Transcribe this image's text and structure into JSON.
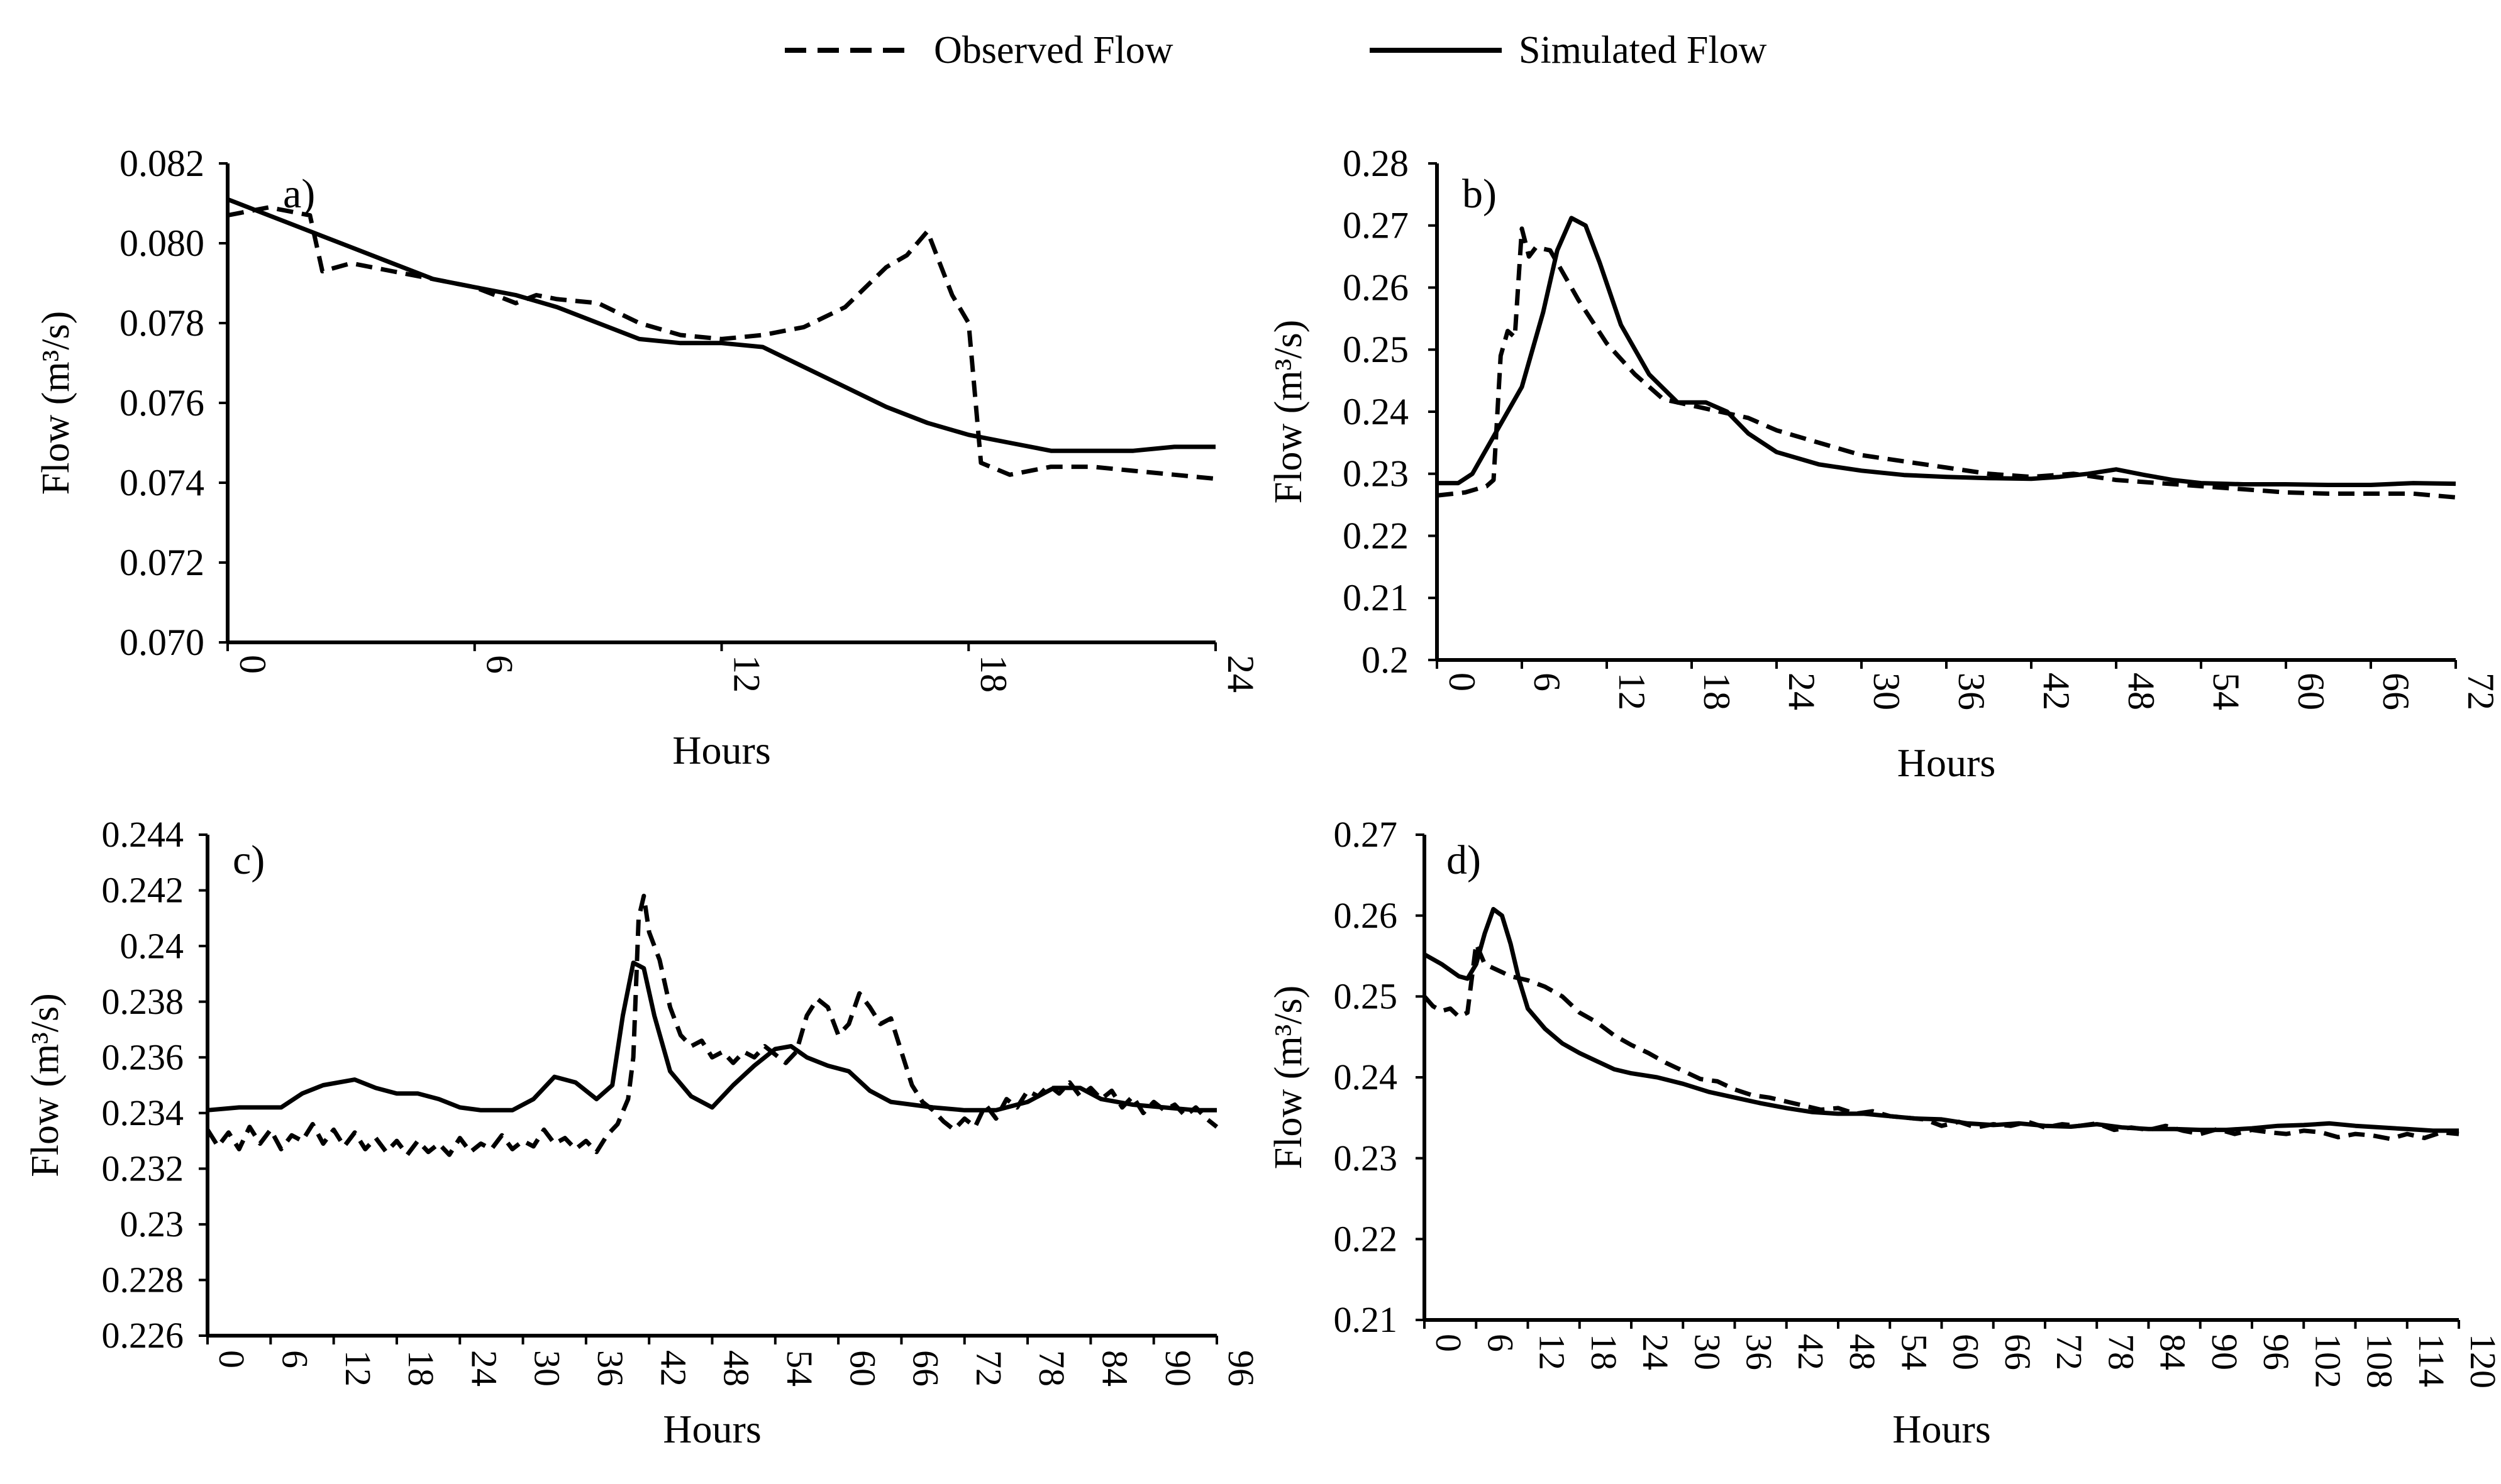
{
  "legend": {
    "observed_label": "Observed Flow",
    "simulated_label": "Simulated Flow"
  },
  "colors": {
    "line": "#000000",
    "background": "#ffffff"
  },
  "chart_data": [
    {
      "id": "a",
      "type": "line",
      "panel_label": "a)",
      "xlabel": "Hours",
      "ylabel": "Flow (m³/s)",
      "xlim": [
        0,
        24
      ],
      "ylim": [
        0.07,
        0.082
      ],
      "xticks": [
        0,
        6,
        12,
        18,
        24
      ],
      "yticks": [
        0.07,
        0.072,
        0.074,
        0.076,
        0.078,
        0.08,
        0.082
      ],
      "ytick_decimals": 3,
      "series": [
        {
          "name": "Observed Flow",
          "style": "dashed",
          "x": [
            0,
            0.5,
            1,
            1.5,
            2,
            2.3,
            3,
            4,
            5,
            6,
            7,
            7.5,
            8,
            9,
            10,
            11,
            12,
            13,
            14,
            15,
            16,
            16.5,
            17,
            17.3,
            17.6,
            18,
            18.3,
            19,
            20,
            21,
            22,
            23,
            24
          ],
          "values": [
            0.0807,
            0.0808,
            0.0809,
            0.0808,
            0.0807,
            0.0793,
            0.0795,
            0.0793,
            0.0791,
            0.0789,
            0.0785,
            0.0787,
            0.0786,
            0.0785,
            0.078,
            0.0777,
            0.0776,
            0.0777,
            0.0779,
            0.0784,
            0.0794,
            0.0797,
            0.0803,
            0.0795,
            0.0787,
            0.078,
            0.0745,
            0.0742,
            0.0744,
            0.0744,
            0.0743,
            0.0742,
            0.0741
          ]
        },
        {
          "name": "Simulated Flow",
          "style": "solid",
          "x": [
            0,
            1,
            2,
            3,
            4,
            5,
            6,
            7,
            8,
            9,
            10,
            11,
            12,
            13,
            14,
            15,
            16,
            17,
            18,
            19,
            20,
            21,
            22,
            23,
            24
          ],
          "values": [
            0.0811,
            0.0807,
            0.0803,
            0.0799,
            0.0795,
            0.0791,
            0.0789,
            0.0787,
            0.0784,
            0.078,
            0.0776,
            0.0775,
            0.0775,
            0.0774,
            0.0769,
            0.0764,
            0.0759,
            0.0755,
            0.0752,
            0.075,
            0.0748,
            0.0748,
            0.0748,
            0.0749,
            0.0749
          ]
        }
      ]
    },
    {
      "id": "b",
      "type": "line",
      "panel_label": "b)",
      "xlabel": "Hours",
      "ylabel": "Flow (m³/s)",
      "xlim": [
        0,
        72
      ],
      "ylim": [
        0.2,
        0.28
      ],
      "xticks": [
        0,
        6,
        12,
        18,
        24,
        30,
        36,
        42,
        48,
        54,
        60,
        66,
        72
      ],
      "yticks": [
        0.2,
        0.21,
        0.22,
        0.23,
        0.24,
        0.25,
        0.26,
        0.27,
        0.28
      ],
      "ytick_labels": [
        "0.2",
        "0.21",
        "0.22",
        "0.23",
        "0.24",
        "0.25",
        "0.26",
        "0.27",
        "0.28"
      ],
      "series": [
        {
          "name": "Observed Flow",
          "style": "dashed",
          "x": [
            0,
            2,
            3.5,
            4,
            4.5,
            5,
            5.5,
            6,
            6.5,
            7,
            8,
            9,
            10,
            12,
            14,
            16,
            18,
            20,
            22,
            24,
            27,
            30,
            33,
            36,
            39,
            42,
            45,
            48,
            51,
            54,
            57,
            60,
            63,
            66,
            69,
            72
          ],
          "values": [
            0.2265,
            0.227,
            0.228,
            0.229,
            0.249,
            0.253,
            0.252,
            0.2695,
            0.265,
            0.2665,
            0.266,
            0.262,
            0.258,
            0.251,
            0.246,
            0.242,
            0.241,
            0.24,
            0.239,
            0.237,
            0.235,
            0.233,
            0.232,
            0.231,
            0.23,
            0.2295,
            0.23,
            0.229,
            0.2285,
            0.228,
            0.2275,
            0.227,
            0.2268,
            0.2268,
            0.2268,
            0.2262
          ]
        },
        {
          "name": "Simulated Flow",
          "style": "solid",
          "x": [
            0,
            1.5,
            2.5,
            4,
            6,
            7.5,
            8.5,
            9.5,
            10.5,
            11.5,
            13,
            15,
            17,
            19,
            20.5,
            22,
            24,
            27,
            30,
            33,
            36,
            39,
            42,
            44,
            46,
            48,
            50,
            52,
            54,
            57,
            60,
            63,
            66,
            69,
            72
          ],
          "values": [
            0.2285,
            0.2285,
            0.23,
            0.236,
            0.244,
            0.256,
            0.266,
            0.2712,
            0.27,
            0.264,
            0.254,
            0.246,
            0.2415,
            0.2415,
            0.24,
            0.2365,
            0.2335,
            0.2315,
            0.2305,
            0.2298,
            0.2295,
            0.2293,
            0.2292,
            0.2295,
            0.23,
            0.2307,
            0.2298,
            0.229,
            0.2285,
            0.2283,
            0.2283,
            0.2282,
            0.2282,
            0.2285,
            0.2284
          ]
        }
      ]
    },
    {
      "id": "c",
      "type": "line",
      "panel_label": "c)",
      "xlabel": "Hours",
      "ylabel": "Flow (m³/s)",
      "xlim": [
        0,
        96
      ],
      "ylim": [
        0.226,
        0.244
      ],
      "xticks": [
        0,
        6,
        12,
        18,
        24,
        30,
        36,
        42,
        48,
        54,
        60,
        66,
        72,
        78,
        84,
        90,
        96
      ],
      "yticks": [
        0.226,
        0.228,
        0.23,
        0.232,
        0.234,
        0.236,
        0.238,
        0.24,
        0.242,
        0.244
      ],
      "ytick_labels": [
        "0.226",
        "0.228",
        "0.23",
        "0.232",
        "0.234",
        "0.236",
        "0.238",
        "0.24",
        "0.242",
        "0.244"
      ],
      "series": [
        {
          "name": "Observed Flow",
          "style": "dashed",
          "x": [
            0,
            1,
            2,
            3,
            4,
            5,
            6,
            7,
            8,
            9,
            10,
            11,
            12,
            13,
            14,
            15,
            16,
            17,
            18,
            19,
            20,
            21,
            22,
            23,
            24,
            25,
            26,
            27,
            28,
            29,
            30,
            31,
            32,
            33,
            34,
            35,
            36,
            37,
            38,
            39,
            40,
            40.5,
            41,
            41.5,
            42,
            43,
            44,
            45,
            46,
            47,
            48,
            49,
            50,
            51,
            52,
            53,
            54,
            55,
            56,
            57,
            58,
            59,
            60,
            61,
            62,
            63,
            64,
            65,
            66,
            67,
            68,
            69,
            70,
            71,
            72,
            73,
            74,
            75,
            76,
            77,
            78,
            79,
            80,
            81,
            82,
            83,
            84,
            85,
            86,
            87,
            88,
            89,
            90,
            91,
            92,
            93,
            94,
            95,
            96
          ],
          "values": [
            0.2334,
            0.2328,
            0.2333,
            0.2327,
            0.2335,
            0.2329,
            0.2334,
            0.2327,
            0.2332,
            0.233,
            0.2336,
            0.2329,
            0.2334,
            0.2328,
            0.2333,
            0.2327,
            0.2331,
            0.2326,
            0.233,
            0.2325,
            0.233,
            0.2326,
            0.2329,
            0.2325,
            0.2331,
            0.2326,
            0.2329,
            0.2327,
            0.2332,
            0.2327,
            0.233,
            0.2328,
            0.2334,
            0.2329,
            0.2331,
            0.2327,
            0.233,
            0.2326,
            0.2332,
            0.2336,
            0.2345,
            0.236,
            0.241,
            0.2418,
            0.2405,
            0.2395,
            0.2378,
            0.2368,
            0.2364,
            0.2366,
            0.236,
            0.2362,
            0.2358,
            0.2362,
            0.236,
            0.2364,
            0.2361,
            0.2358,
            0.2362,
            0.2375,
            0.2381,
            0.2378,
            0.2368,
            0.2372,
            0.2383,
            0.2378,
            0.2372,
            0.2374,
            0.2362,
            0.235,
            0.2344,
            0.2341,
            0.2337,
            0.2334,
            0.2338,
            0.2335,
            0.2343,
            0.2338,
            0.2345,
            0.2342,
            0.2348,
            0.2346,
            0.235,
            0.2347,
            0.2351,
            0.2346,
            0.2349,
            0.2345,
            0.2348,
            0.2342,
            0.2346,
            0.234,
            0.2344,
            0.2341,
            0.2343,
            0.2339,
            0.2342,
            0.2338,
            0.2335
          ]
        },
        {
          "name": "Simulated Flow",
          "style": "solid",
          "x": [
            0,
            3,
            7,
            9,
            11,
            14,
            16,
            18,
            20,
            22,
            24,
            26,
            29,
            31,
            33,
            35,
            37,
            38.5,
            39.5,
            40.5,
            41.5,
            42.5,
            44,
            46,
            48,
            50,
            52,
            54,
            55.5,
            57,
            59,
            61,
            63,
            65,
            67,
            69,
            72,
            75,
            78,
            80.5,
            83,
            85,
            88,
            91,
            94,
            96
          ],
          "values": [
            0.2341,
            0.2342,
            0.2342,
            0.2347,
            0.235,
            0.2352,
            0.2349,
            0.2347,
            0.2347,
            0.2345,
            0.2342,
            0.2341,
            0.2341,
            0.2345,
            0.2353,
            0.2351,
            0.2345,
            0.235,
            0.2375,
            0.2394,
            0.2392,
            0.2375,
            0.2355,
            0.2346,
            0.2342,
            0.235,
            0.2357,
            0.2363,
            0.2364,
            0.236,
            0.2357,
            0.2355,
            0.2348,
            0.2344,
            0.2343,
            0.2342,
            0.2341,
            0.2341,
            0.2344,
            0.2349,
            0.2349,
            0.2345,
            0.2343,
            0.2342,
            0.2341,
            0.2341
          ]
        }
      ]
    },
    {
      "id": "d",
      "type": "line",
      "panel_label": "d)",
      "xlabel": "Hours",
      "ylabel": "Flow (m³/s)",
      "xlim": [
        0,
        120
      ],
      "ylim": [
        0.21,
        0.27
      ],
      "xticks": [
        0,
        6,
        12,
        18,
        24,
        30,
        36,
        42,
        48,
        54,
        60,
        66,
        72,
        78,
        84,
        90,
        96,
        102,
        108,
        114,
        120
      ],
      "yticks": [
        0.21,
        0.22,
        0.23,
        0.24,
        0.25,
        0.26,
        0.27
      ],
      "ytick_labels": [
        "0.21",
        "0.22",
        "0.23",
        "0.24",
        "0.25",
        "0.26",
        "0.27"
      ],
      "series": [
        {
          "name": "Observed Flow",
          "style": "dashed",
          "x": [
            0,
            1,
            2,
            3,
            4,
            5,
            6,
            7,
            8,
            9,
            10,
            12,
            14,
            16,
            18,
            20,
            22,
            24,
            26,
            28,
            30,
            32,
            34,
            36,
            38,
            40,
            42,
            44,
            46,
            48,
            50,
            52,
            54,
            56,
            58,
            60,
            62,
            64,
            66,
            68,
            70,
            72,
            74,
            76,
            78,
            80,
            82,
            84,
            86,
            88,
            90,
            92,
            94,
            96,
            98,
            100,
            102,
            104,
            106,
            108,
            110,
            112,
            114,
            116,
            118,
            120
          ],
          "values": [
            0.25,
            0.2488,
            0.2482,
            0.2485,
            0.2475,
            0.248,
            0.2565,
            0.254,
            0.2535,
            0.253,
            0.2525,
            0.252,
            0.2512,
            0.25,
            0.248,
            0.2468,
            0.2452,
            0.244,
            0.243,
            0.2418,
            0.2408,
            0.2398,
            0.2395,
            0.2385,
            0.2378,
            0.2375,
            0.237,
            0.2365,
            0.236,
            0.2362,
            0.2355,
            0.2358,
            0.2352,
            0.235,
            0.2348,
            0.234,
            0.2345,
            0.2338,
            0.2342,
            0.234,
            0.2345,
            0.2338,
            0.2342,
            0.234,
            0.2343,
            0.2335,
            0.2338,
            0.2335,
            0.234,
            0.2334,
            0.233,
            0.2336,
            0.233,
            0.2335,
            0.2332,
            0.233,
            0.2334,
            0.2332,
            0.2326,
            0.233,
            0.2328,
            0.2324,
            0.233,
            0.2325,
            0.2332,
            0.233
          ]
        },
        {
          "name": "Simulated Flow",
          "style": "solid",
          "x": [
            0,
            2,
            4,
            5,
            6,
            7,
            8,
            9,
            10,
            11,
            12,
            14,
            16,
            18,
            20,
            22,
            24,
            27,
            30,
            33,
            36,
            39,
            42,
            45,
            48,
            51,
            54,
            57,
            60,
            63,
            66,
            69,
            72,
            75,
            78,
            81,
            84,
            87,
            90,
            93,
            96,
            99,
            102,
            105,
            108,
            111,
            114,
            117,
            120
          ],
          "values": [
            0.2552,
            0.254,
            0.2525,
            0.2522,
            0.254,
            0.2578,
            0.2608,
            0.26,
            0.2565,
            0.252,
            0.2485,
            0.246,
            0.2442,
            0.243,
            0.242,
            0.241,
            0.2405,
            0.24,
            0.2392,
            0.2382,
            0.2375,
            0.2368,
            0.2362,
            0.2357,
            0.2355,
            0.2355,
            0.2352,
            0.2349,
            0.2348,
            0.2343,
            0.2341,
            0.2343,
            0.234,
            0.2339,
            0.2342,
            0.2338,
            0.2336,
            0.2336,
            0.2335,
            0.2335,
            0.2337,
            0.234,
            0.2341,
            0.2343,
            0.234,
            0.2338,
            0.2336,
            0.2334,
            0.2334
          ]
        }
      ]
    }
  ]
}
